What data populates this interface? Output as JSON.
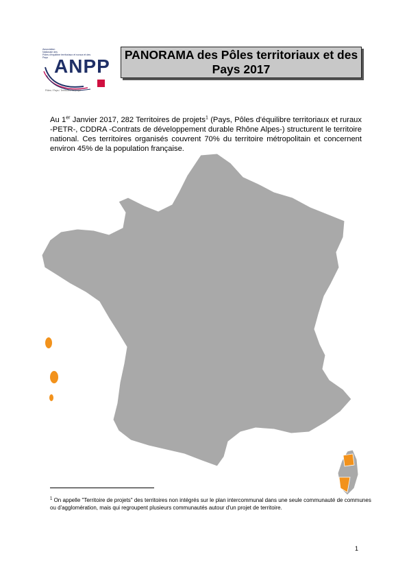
{
  "logo": {
    "brand": "ANPP",
    "top_text": "Association\nNationale des\nPôles d'équilibre territoriaux et ruraux et des\nPays",
    "tagline": "Pôles / Pays / Territoires de projet"
  },
  "title": "PANORAMA des Pôles territoriaux et des Pays 2017",
  "intro": {
    "part1": "Au 1",
    "sup1": "er",
    "part2": " Janvier 2017, 282 Territoires de projets",
    "sup2": "1",
    "part3": " (Pays, Pôles d'équilibre territoriaux et ruraux -PETR-, CDDRA -Contrats de développement durable Rhône Alpes-) structurent le territoire national. Ces territoires organisés couvrent 70% du territoire métropolitain et concernent environ 45% de la population française."
  },
  "map": {
    "colors": {
      "covered": "#f2921c",
      "uncovered": "#a9a9a9",
      "border": "#ffffff"
    }
  },
  "footnote": {
    "marker": "1",
    "text": " On appelle \"Territoire de projets\" des territoires non intégrés sur le plan intercommunal dans une seule communauté de communes ou d'agglomération, mais qui regroupent plusieurs communautés autour d'un projet de territoire."
  },
  "page_number": "1"
}
